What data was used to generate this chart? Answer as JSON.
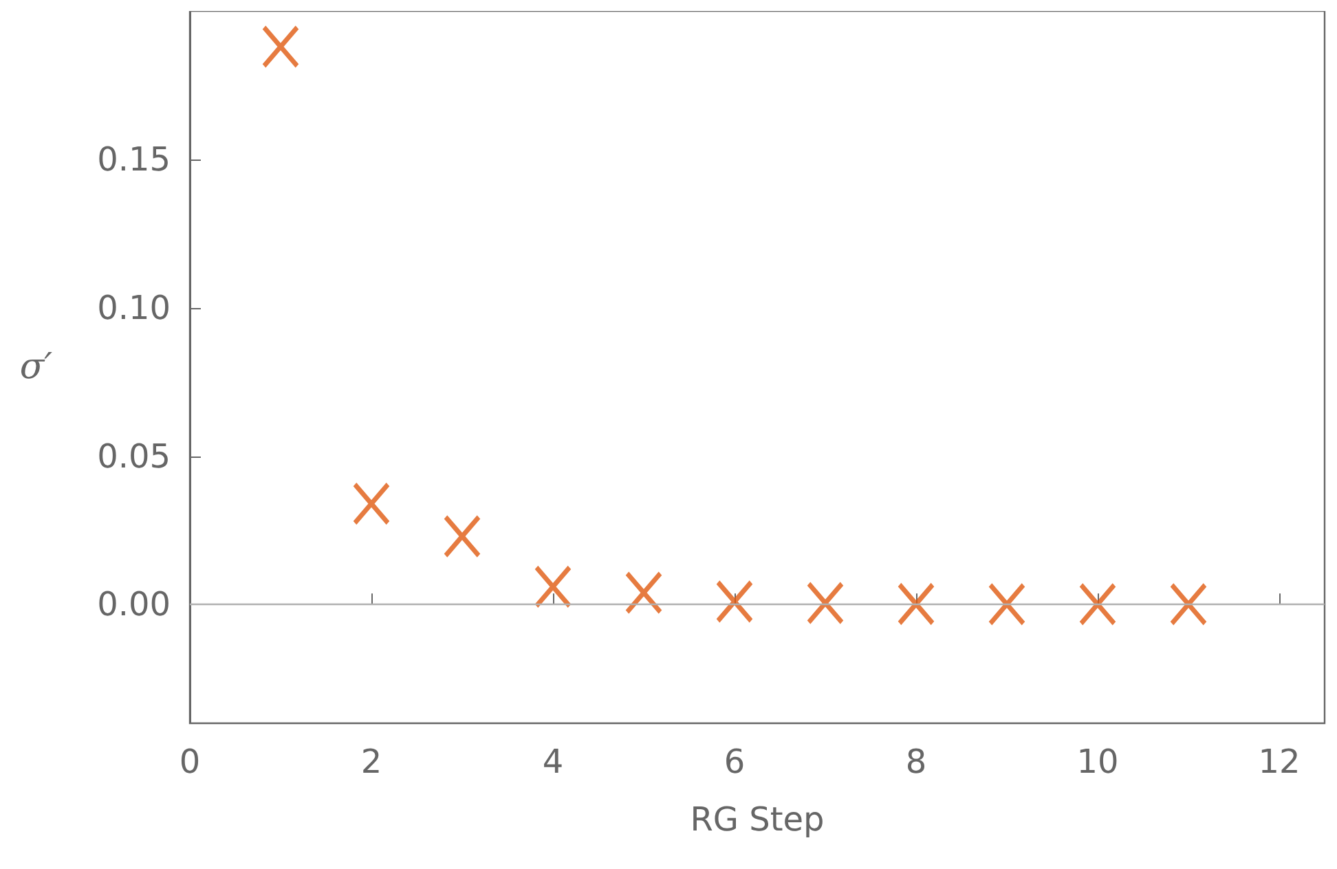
{
  "chart_data": {
    "type": "scatter",
    "xlabel": "RG Step",
    "ylabel": "σ′",
    "x": [
      1,
      2,
      3,
      4,
      5,
      6,
      7,
      8,
      9,
      10,
      11
    ],
    "series": [
      {
        "color": "#e05a10",
        "values": [
          0.188,
          0.034,
          0.023,
          0.006,
          0.004,
          0.001,
          0.0005,
          0.0002,
          0.0001,
          0.0001,
          0.0001
        ]
      }
    ],
    "marker": "cross",
    "xlim": [
      0,
      12.5
    ],
    "xticks": [
      0,
      2,
      4,
      6,
      8,
      10,
      12
    ],
    "ylim": [
      -0.04,
      0.2
    ],
    "yticks": [
      {
        "value": 0,
        "label": "0.00"
      },
      {
        "value": 0.05,
        "label": "0.05"
      },
      {
        "value": 0.1,
        "label": "0.10"
      },
      {
        "value": 0.15,
        "label": "0.15"
      }
    ],
    "ref_lines": [
      {
        "axis": "y",
        "value": 0,
        "color": "#b0b0b0"
      }
    ],
    "grid": false
  }
}
